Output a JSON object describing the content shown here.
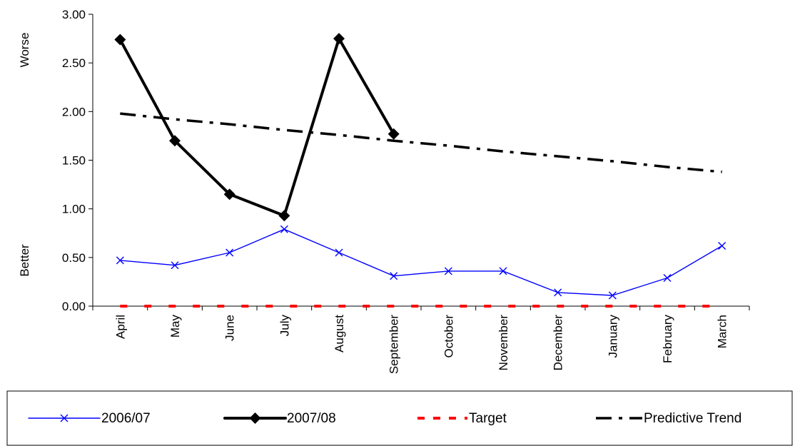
{
  "chart_data": {
    "type": "line",
    "categories": [
      "April",
      "May",
      "June",
      "July",
      "August",
      "September",
      "October",
      "November",
      "December",
      "January",
      "February",
      "March"
    ],
    "ylim": [
      0,
      3
    ],
    "yticks": [
      "0.00",
      "0.50",
      "1.00",
      "1.50",
      "2.00",
      "2.50",
      "3.00"
    ],
    "ytick_values": [
      0,
      0.5,
      1,
      1.5,
      2,
      2.5,
      3
    ],
    "ylabel_top": "Worse",
    "ylabel_bottom": "Better",
    "grid": false,
    "legend_position": "bottom",
    "series": [
      {
        "name": "2006/07",
        "color": "#0000ff",
        "marker": "x-icon",
        "values": [
          0.47,
          0.42,
          0.55,
          0.79,
          0.55,
          0.31,
          0.36,
          0.36,
          0.14,
          0.11,
          0.29,
          0.62
        ]
      },
      {
        "name": "2007/08",
        "color": "#000000",
        "marker": "diamond-icon",
        "values": [
          2.74,
          1.7,
          1.15,
          0.93,
          2.75,
          1.77,
          null,
          null,
          null,
          null,
          null,
          null
        ]
      },
      {
        "name": "Target",
        "color": "#ff0000",
        "line_style": "dashed",
        "values": [
          0,
          0,
          0,
          0,
          0,
          0,
          0,
          0,
          0,
          0,
          0,
          0
        ]
      },
      {
        "name": "Predictive Trend",
        "color": "#000000",
        "line_style": "dash-dot",
        "values": [
          1.98,
          1.92,
          1.87,
          1.81,
          1.76,
          1.7,
          1.65,
          1.59,
          1.54,
          1.49,
          1.43,
          1.38
        ]
      }
    ]
  }
}
